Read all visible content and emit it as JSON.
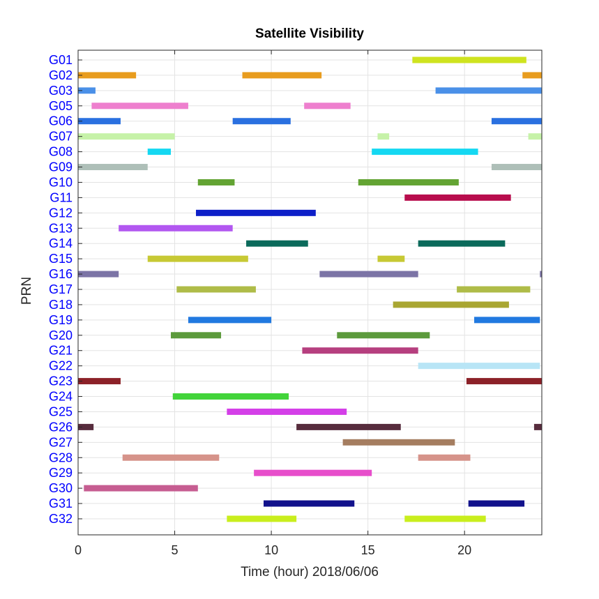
{
  "chart_data": {
    "type": "timeline",
    "title": "Satellite Visibility",
    "xlabel": "Time (hour)  2018/06/06",
    "ylabel": "PRN",
    "xlim": [
      0,
      24
    ],
    "xticks": [
      0,
      5,
      10,
      15,
      20
    ],
    "grid": true,
    "satellites": [
      {
        "prn": "G01",
        "color": "#cfe31f",
        "intervals": [
          [
            17.3,
            23.2
          ]
        ]
      },
      {
        "prn": "G02",
        "color": "#e89c1e",
        "intervals": [
          [
            0,
            3.0
          ],
          [
            8.5,
            12.6
          ],
          [
            23.0,
            24.0
          ]
        ]
      },
      {
        "prn": "G03",
        "color": "#4a90e8",
        "intervals": [
          [
            0,
            0.9
          ],
          [
            18.5,
            24.0
          ]
        ]
      },
      {
        "prn": "G05",
        "color": "#ee7fce",
        "intervals": [
          [
            0.7,
            5.7
          ],
          [
            11.7,
            14.1
          ]
        ]
      },
      {
        "prn": "G06",
        "color": "#2a70e0",
        "intervals": [
          [
            0,
            2.2
          ],
          [
            8.0,
            11.0
          ],
          [
            21.4,
            24.0
          ]
        ]
      },
      {
        "prn": "G07",
        "color": "#c6f2a8",
        "intervals": [
          [
            0,
            5.0
          ],
          [
            15.5,
            16.1
          ],
          [
            23.3,
            24.0
          ]
        ]
      },
      {
        "prn": "G08",
        "color": "#15d8f2",
        "intervals": [
          [
            3.6,
            4.8
          ],
          [
            15.2,
            20.7
          ]
        ]
      },
      {
        "prn": "G09",
        "color": "#aebfb8",
        "intervals": [
          [
            0,
            3.6
          ],
          [
            21.4,
            24.0
          ]
        ]
      },
      {
        "prn": "G10",
        "color": "#63a433",
        "intervals": [
          [
            6.2,
            8.1
          ],
          [
            14.5,
            19.7
          ]
        ]
      },
      {
        "prn": "G11",
        "color": "#b80d4d",
        "intervals": [
          [
            16.9,
            22.4
          ]
        ]
      },
      {
        "prn": "G12",
        "color": "#0d1fc8",
        "intervals": [
          [
            6.1,
            12.3
          ]
        ]
      },
      {
        "prn": "G13",
        "color": "#b257f0",
        "intervals": [
          [
            2.1,
            8.0
          ]
        ]
      },
      {
        "prn": "G14",
        "color": "#0b6a5b",
        "intervals": [
          [
            8.7,
            11.9
          ],
          [
            17.6,
            22.1
          ]
        ]
      },
      {
        "prn": "G15",
        "color": "#c7c934",
        "intervals": [
          [
            3.6,
            8.8
          ],
          [
            15.5,
            16.9
          ]
        ]
      },
      {
        "prn": "G16",
        "color": "#7c74a6",
        "intervals": [
          [
            0,
            2.1
          ],
          [
            12.5,
            17.6
          ],
          [
            23.9,
            24.0
          ]
        ]
      },
      {
        "prn": "G17",
        "color": "#afbc48",
        "intervals": [
          [
            5.1,
            9.2
          ],
          [
            19.6,
            23.4
          ]
        ]
      },
      {
        "prn": "G18",
        "color": "#a9a632",
        "intervals": [
          [
            16.3,
            22.3
          ]
        ]
      },
      {
        "prn": "G19",
        "color": "#2179e0",
        "intervals": [
          [
            5.7,
            10.0
          ],
          [
            20.5,
            23.9
          ]
        ]
      },
      {
        "prn": "G20",
        "color": "#5c9a3c",
        "intervals": [
          [
            4.8,
            7.4
          ],
          [
            13.4,
            18.2
          ]
        ]
      },
      {
        "prn": "G21",
        "color": "#b63f7f",
        "intervals": [
          [
            11.6,
            17.6
          ]
        ]
      },
      {
        "prn": "G22",
        "color": "#b8e5f6",
        "intervals": [
          [
            17.6,
            23.9
          ]
        ]
      },
      {
        "prn": "G23",
        "color": "#8c2128",
        "intervals": [
          [
            0,
            2.2
          ],
          [
            20.1,
            24.0
          ]
        ]
      },
      {
        "prn": "G24",
        "color": "#42d43a",
        "intervals": [
          [
            4.9,
            10.9
          ]
        ]
      },
      {
        "prn": "G25",
        "color": "#d43fe8",
        "intervals": [
          [
            7.7,
            13.9
          ]
        ]
      },
      {
        "prn": "G26",
        "color": "#572c3d",
        "intervals": [
          [
            0,
            0.8
          ],
          [
            11.3,
            16.7
          ],
          [
            23.6,
            24.0
          ]
        ]
      },
      {
        "prn": "G27",
        "color": "#a57d60",
        "intervals": [
          [
            13.7,
            19.5
          ]
        ]
      },
      {
        "prn": "G28",
        "color": "#d6938a",
        "intervals": [
          [
            2.3,
            7.3
          ],
          [
            17.6,
            20.3
          ]
        ]
      },
      {
        "prn": "G29",
        "color": "#e74ecb",
        "intervals": [
          [
            9.1,
            15.2
          ]
        ]
      },
      {
        "prn": "G30",
        "color": "#c65d91",
        "intervals": [
          [
            0.3,
            6.2
          ]
        ]
      },
      {
        "prn": "G31",
        "color": "#12128c",
        "intervals": [
          [
            9.6,
            14.3
          ],
          [
            20.2,
            23.1
          ]
        ]
      },
      {
        "prn": "G32",
        "color": "#c9ee1d",
        "intervals": [
          [
            7.7,
            11.3
          ],
          [
            16.9,
            21.1
          ]
        ]
      }
    ]
  }
}
